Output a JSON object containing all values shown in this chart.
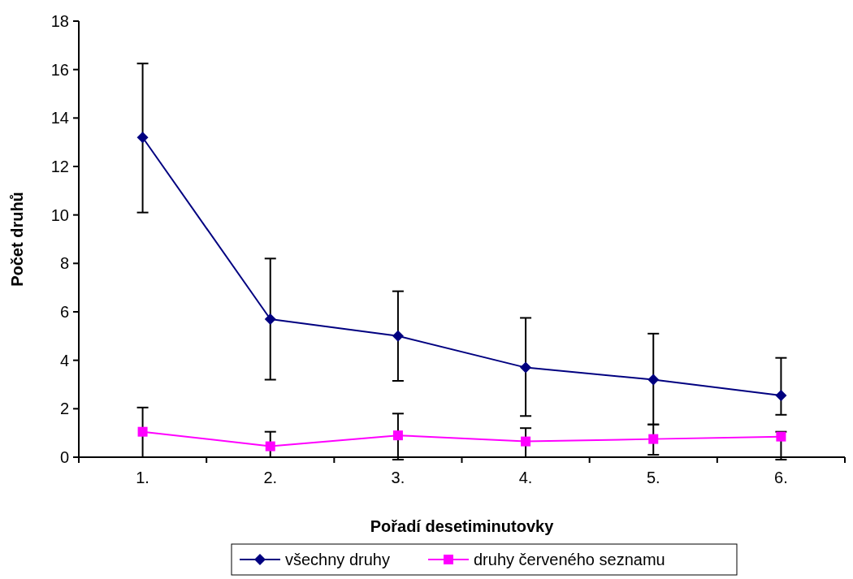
{
  "chart_data": {
    "type": "line",
    "xlabel": "Pořadí desetiminutovky",
    "ylabel": "Počet druhů",
    "categories": [
      "1.",
      "2.",
      "3.",
      "4.",
      "5.",
      "6."
    ],
    "series": [
      {
        "name": "všechny druhy",
        "color": "#000080",
        "marker": "diamond",
        "values": [
          13.2,
          5.7,
          5.0,
          3.7,
          3.2,
          2.55
        ],
        "errors": [
          [
            10.1,
            16.25
          ],
          [
            3.2,
            8.2
          ],
          [
            3.15,
            6.85
          ],
          [
            1.7,
            5.75
          ],
          [
            1.35,
            5.1
          ],
          [
            1.75,
            4.1
          ]
        ]
      },
      {
        "name": "druhy červeného seznamu",
        "color": "#ff00ff",
        "marker": "square",
        "values": [
          1.05,
          0.45,
          0.9,
          0.65,
          0.75,
          0.85
        ],
        "errors": [
          [
            0,
            2.05
          ],
          [
            0,
            1.05
          ],
          [
            -0.1,
            1.8
          ],
          [
            0,
            1.2
          ],
          [
            0.1,
            1.35
          ],
          [
            -0.1,
            1.05
          ]
        ]
      }
    ],
    "ylim": [
      0,
      18
    ],
    "yticks": [
      0,
      2,
      4,
      6,
      8,
      10,
      12,
      14,
      16,
      18
    ],
    "grid": false,
    "legend": "bottom"
  }
}
